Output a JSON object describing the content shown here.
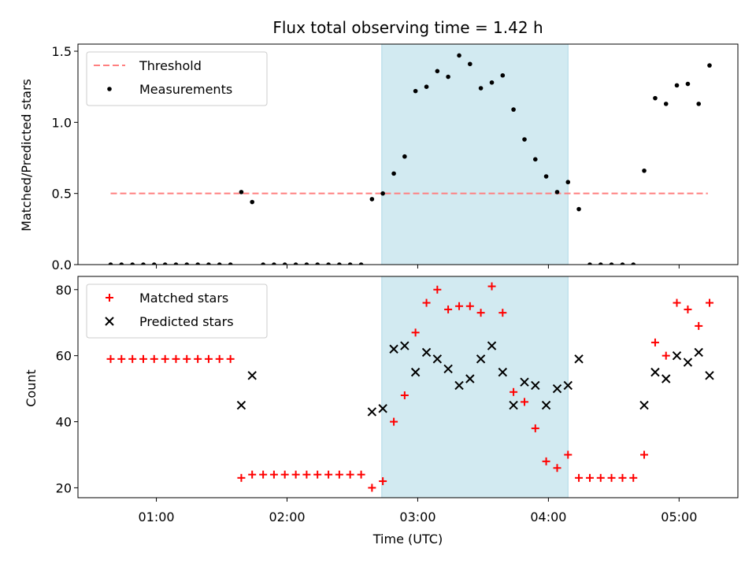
{
  "chart_data": [
    {
      "type": "scatter",
      "title": "Flux total observing time = 1.42 h",
      "ylabel": "Matched/Predicted stars",
      "xlabel": "",
      "x_unit": "hours (UTC)",
      "xlim": [
        0.4,
        5.45
      ],
      "ylim": [
        0,
        1.55
      ],
      "yticks": [
        0.0,
        0.5,
        1.0,
        1.5
      ],
      "ytick_labels": [
        "0.0",
        "0.5",
        "1.0",
        "1.5"
      ],
      "legend_position": "upper-left",
      "shaded_region": [
        2.725,
        4.15
      ],
      "shaded_color": "#add8e6",
      "series": [
        {
          "name": "Threshold",
          "kind": "dashed-line",
          "color": "#ff7f7f",
          "x": [
            0.65,
            5.22
          ],
          "y": [
            0.5,
            0.5
          ]
        },
        {
          "name": "Measurements",
          "kind": "dots",
          "color": "#000000",
          "x": [
            0.65,
            0.733,
            0.817,
            0.9,
            0.983,
            1.067,
            1.15,
            1.233,
            1.317,
            1.4,
            1.483,
            1.567,
            1.65,
            1.733,
            1.817,
            1.9,
            1.983,
            2.067,
            2.15,
            2.233,
            2.317,
            2.4,
            2.483,
            2.567,
            2.65,
            2.733,
            2.817,
            2.9,
            2.983,
            3.067,
            3.15,
            3.233,
            3.317,
            3.4,
            3.483,
            3.567,
            3.65,
            3.733,
            3.817,
            3.9,
            3.983,
            4.067,
            4.15,
            4.233,
            4.317,
            4.4,
            4.483,
            4.567,
            4.65,
            4.733,
            4.817,
            4.9,
            4.983,
            5.067,
            5.15,
            5.233
          ],
          "y": [
            0,
            0,
            0,
            0,
            0,
            0,
            0,
            0,
            0,
            0,
            0,
            0,
            0.51,
            0.44,
            0,
            0,
            0,
            0,
            0,
            0,
            0,
            0,
            0,
            0,
            0.46,
            0.5,
            0.64,
            0.76,
            1.22,
            1.25,
            1.36,
            1.32,
            1.47,
            1.41,
            1.24,
            1.28,
            1.33,
            1.09,
            0.88,
            0.74,
            0.62,
            0.51,
            0.58,
            0.39,
            0,
            0,
            0,
            0,
            0,
            0.66,
            1.17,
            1.13,
            1.26,
            1.27,
            1.13,
            1.4
          ]
        }
      ]
    },
    {
      "type": "scatter",
      "title": "",
      "xlabel": "Time (UTC)",
      "ylabel": "Count",
      "xlim": [
        0.4,
        5.45
      ],
      "ylim": [
        17,
        84
      ],
      "xticks": [
        1,
        2,
        3,
        4,
        5
      ],
      "xtick_labels": [
        "01:00",
        "02:00",
        "03:00",
        "04:00",
        "05:00"
      ],
      "yticks": [
        20,
        40,
        60,
        80
      ],
      "ytick_labels": [
        "20",
        "40",
        "60",
        "80"
      ],
      "legend_position": "upper-left",
      "shaded_region": [
        2.725,
        4.15
      ],
      "shaded_color": "#add8e6",
      "series": [
        {
          "name": "Matched stars",
          "kind": "plus",
          "color": "#ff0000",
          "x": [
            0.65,
            0.733,
            0.817,
            0.9,
            0.983,
            1.067,
            1.15,
            1.233,
            1.317,
            1.4,
            1.483,
            1.567,
            1.65,
            1.733,
            1.817,
            1.9,
            1.983,
            2.067,
            2.15,
            2.233,
            2.317,
            2.4,
            2.483,
            2.567,
            2.65,
            2.733,
            2.817,
            2.9,
            2.983,
            3.067,
            3.15,
            3.233,
            3.317,
            3.4,
            3.483,
            3.567,
            3.65,
            3.733,
            3.817,
            3.9,
            3.983,
            4.067,
            4.15,
            4.233,
            4.317,
            4.4,
            4.483,
            4.567,
            4.65,
            4.733,
            4.817,
            4.9,
            4.983,
            5.067,
            5.15,
            5.233
          ],
          "y": [
            59,
            59,
            59,
            59,
            59,
            59,
            59,
            59,
            59,
            59,
            59,
            59,
            23,
            24,
            24,
            24,
            24,
            24,
            24,
            24,
            24,
            24,
            24,
            24,
            20,
            22,
            40,
            48,
            67,
            76,
            80,
            74,
            75,
            75,
            73,
            81,
            73,
            49,
            46,
            38,
            28,
            26,
            30,
            23,
            23,
            23,
            23,
            23,
            23,
            30,
            64,
            60,
            76,
            74,
            69,
            76
          ]
        },
        {
          "name": "Predicted stars",
          "kind": "cross",
          "color": "#000000",
          "x": [
            1.65,
            1.733,
            2.65,
            2.733,
            2.817,
            2.9,
            2.983,
            3.067,
            3.15,
            3.233,
            3.317,
            3.4,
            3.483,
            3.567,
            3.65,
            3.733,
            3.817,
            3.9,
            3.983,
            4.067,
            4.15,
            4.233,
            4.733,
            4.817,
            4.9,
            4.983,
            5.067,
            5.15,
            5.233
          ],
          "y": [
            45,
            54,
            43,
            44,
            62,
            63,
            55,
            61,
            59,
            56,
            51,
            53,
            59,
            63,
            55,
            45,
            52,
            51,
            45,
            50,
            51,
            59,
            45,
            55,
            53,
            60,
            58,
            61,
            54
          ]
        }
      ]
    }
  ]
}
